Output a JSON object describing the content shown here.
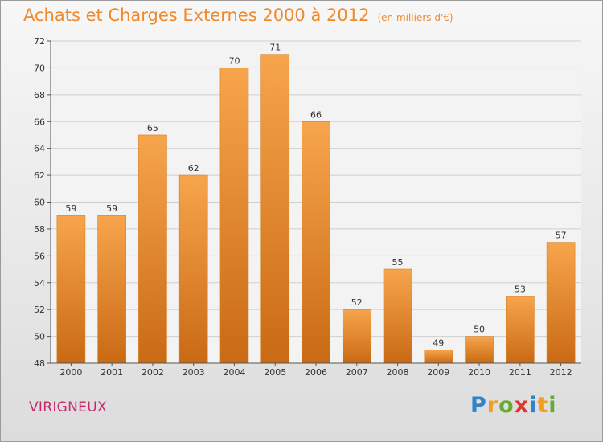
{
  "title": "Achats et Charges Externes 2000 à 2012",
  "unit": "(en milliers d'€)",
  "commune": "VIRIGNEUX",
  "logo": {
    "letters": [
      {
        "ch": "P",
        "color": "#2f83c6"
      },
      {
        "ch": "r",
        "color": "#f0a020"
      },
      {
        "ch": "o",
        "color": "#6aa834"
      },
      {
        "ch": "x",
        "color": "#e0342f"
      },
      {
        "ch": "i",
        "color": "#2f83c6"
      },
      {
        "ch": "t",
        "color": "#f0a020"
      },
      {
        "ch": "i",
        "color": "#6aa834"
      }
    ]
  },
  "chart_data": {
    "type": "bar",
    "title": "Achats et Charges Externes 2000 à 2012",
    "subtitle": "(en milliers d'€)",
    "categories": [
      "2000",
      "2001",
      "2002",
      "2003",
      "2004",
      "2005",
      "2006",
      "2007",
      "2008",
      "2009",
      "2010",
      "2011",
      "2012"
    ],
    "values": [
      59,
      59,
      65,
      62,
      70,
      71,
      66,
      52,
      55,
      49,
      50,
      53,
      57
    ],
    "ylim": [
      48,
      72
    ],
    "yticks": [
      48,
      50,
      52,
      54,
      56,
      58,
      60,
      62,
      64,
      66,
      68,
      70,
      72
    ],
    "grid": true,
    "bar_color": "#f0953a"
  }
}
